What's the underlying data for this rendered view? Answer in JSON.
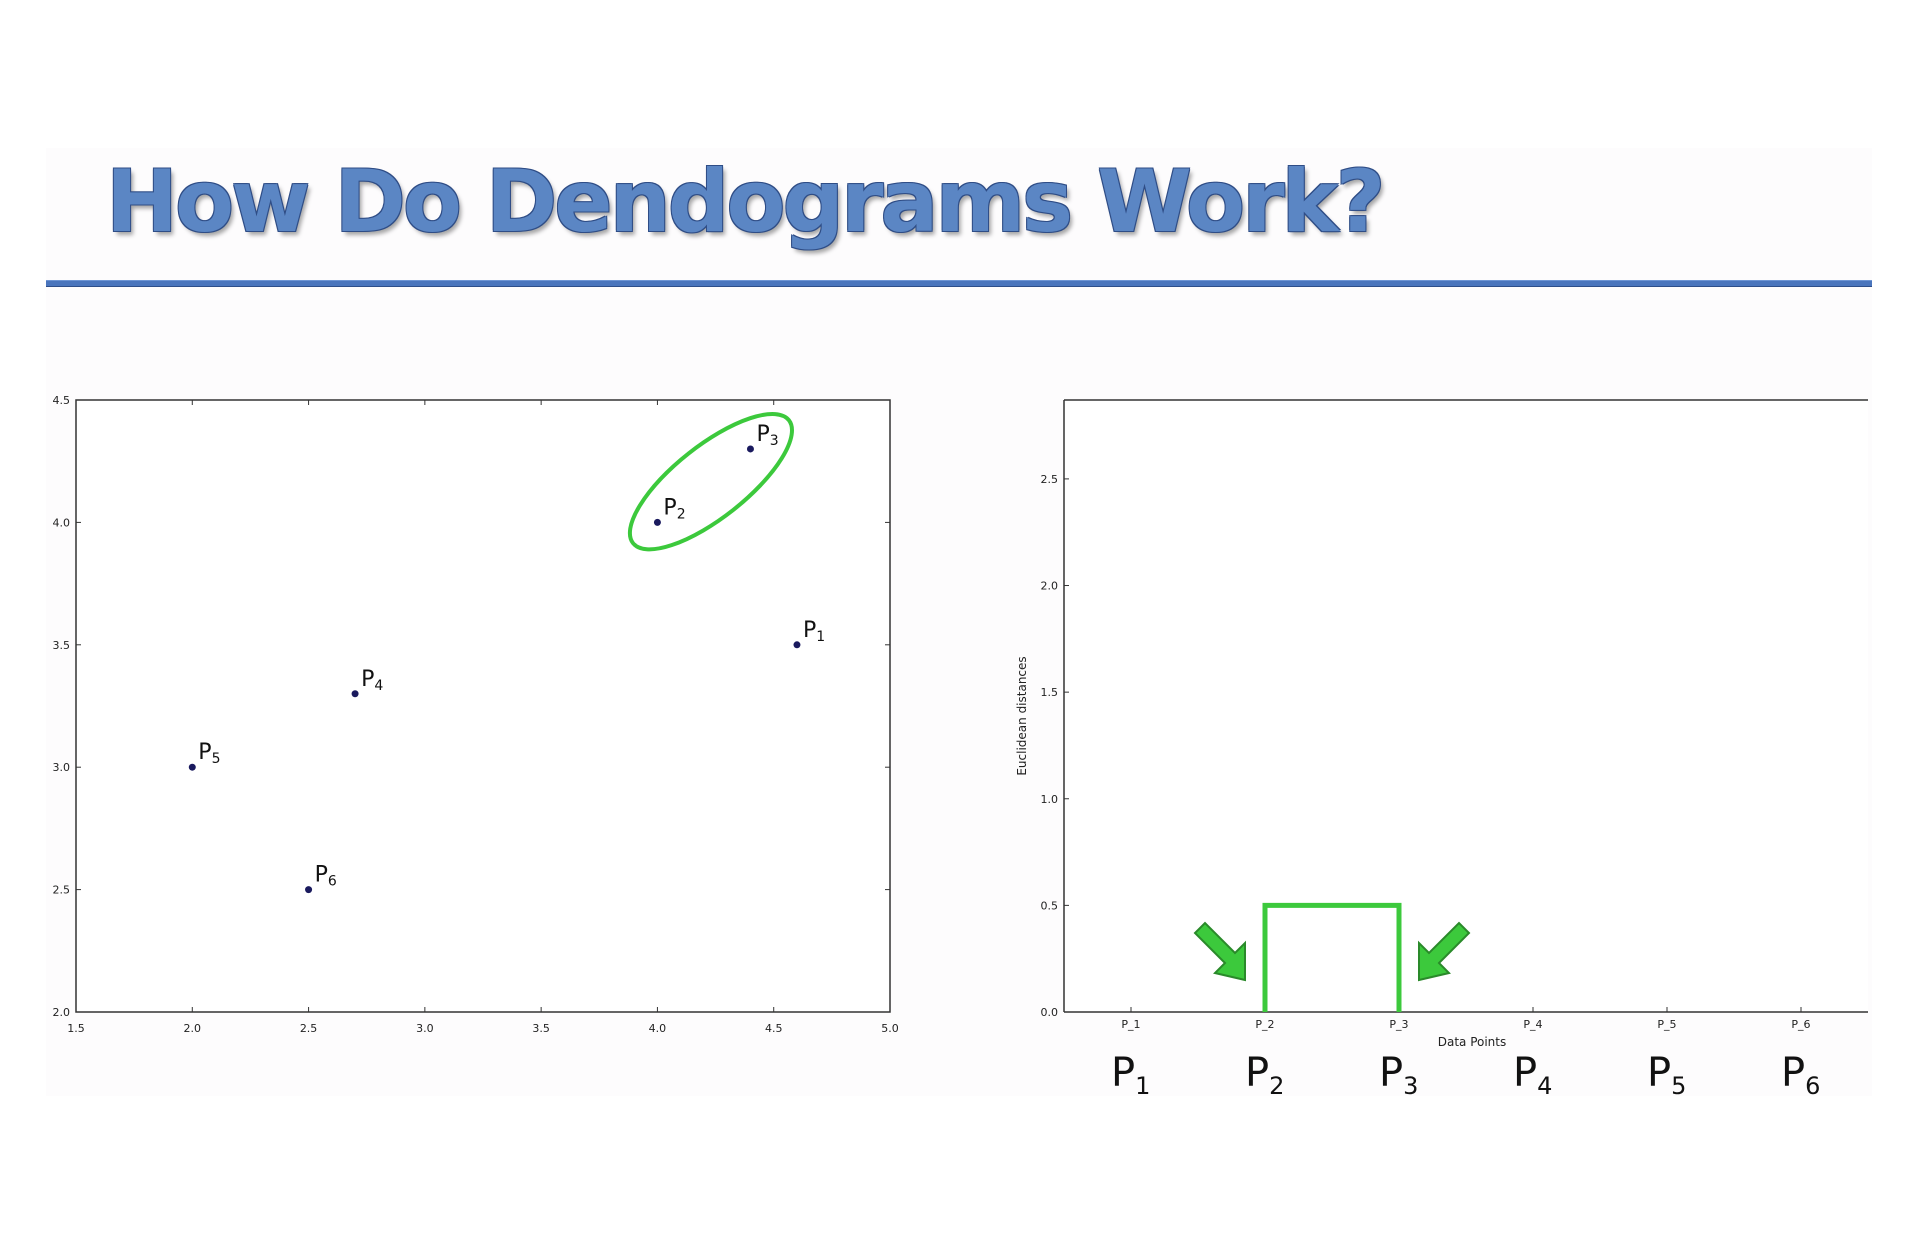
{
  "slide": {
    "title": "How Do Dendograms Work?",
    "accent_color": "#4a75bd",
    "highlight_color": "#3cc93c"
  },
  "chart_data": [
    {
      "type": "scatter",
      "xlim": [
        1.5,
        5.0
      ],
      "ylim": [
        2.0,
        4.5
      ],
      "xticks": [
        "1.5",
        "2.0",
        "2.5",
        "3.0",
        "3.5",
        "4.0",
        "4.5",
        "5.0"
      ],
      "yticks": [
        "2.0",
        "2.5",
        "3.0",
        "3.5",
        "4.0",
        "4.5"
      ],
      "points": [
        {
          "base": "P",
          "sub": "1",
          "x": 4.6,
          "y": 3.5
        },
        {
          "base": "P",
          "sub": "2",
          "x": 4.0,
          "y": 4.0
        },
        {
          "base": "P",
          "sub": "3",
          "x": 4.4,
          "y": 4.3
        },
        {
          "base": "P",
          "sub": "4",
          "x": 2.7,
          "y": 3.3
        },
        {
          "base": "P",
          "sub": "5",
          "x": 2.0,
          "y": 3.0
        },
        {
          "base": "P",
          "sub": "6",
          "x": 2.5,
          "y": 2.5
        }
      ],
      "highlighted_cluster": [
        "P2",
        "P3"
      ],
      "point_color": "#1a1a5e",
      "grid": false
    },
    {
      "type": "dendrogram",
      "xlabel": "Data Points",
      "ylabel": "Euclidean distances",
      "ylim": [
        0.0,
        2.87
      ],
      "yticks": [
        "0.0",
        "0.5",
        "1.0",
        "1.5",
        "2.0",
        "2.5"
      ],
      "leaves": [
        "P_1",
        "P_2",
        "P_3",
        "P_4",
        "P_5",
        "P_6"
      ],
      "big_labels": [
        {
          "base": "P",
          "sub": "1"
        },
        {
          "base": "P",
          "sub": "2"
        },
        {
          "base": "P",
          "sub": "3"
        },
        {
          "base": "P",
          "sub": "4"
        },
        {
          "base": "P",
          "sub": "5"
        },
        {
          "base": "P",
          "sub": "6"
        }
      ],
      "merges": [
        {
          "left": "P_2",
          "right": "P_3",
          "height": 0.5
        }
      ],
      "arrows": [
        "pointing to P_2",
        "pointing to P_3"
      ],
      "grid": false
    }
  ]
}
